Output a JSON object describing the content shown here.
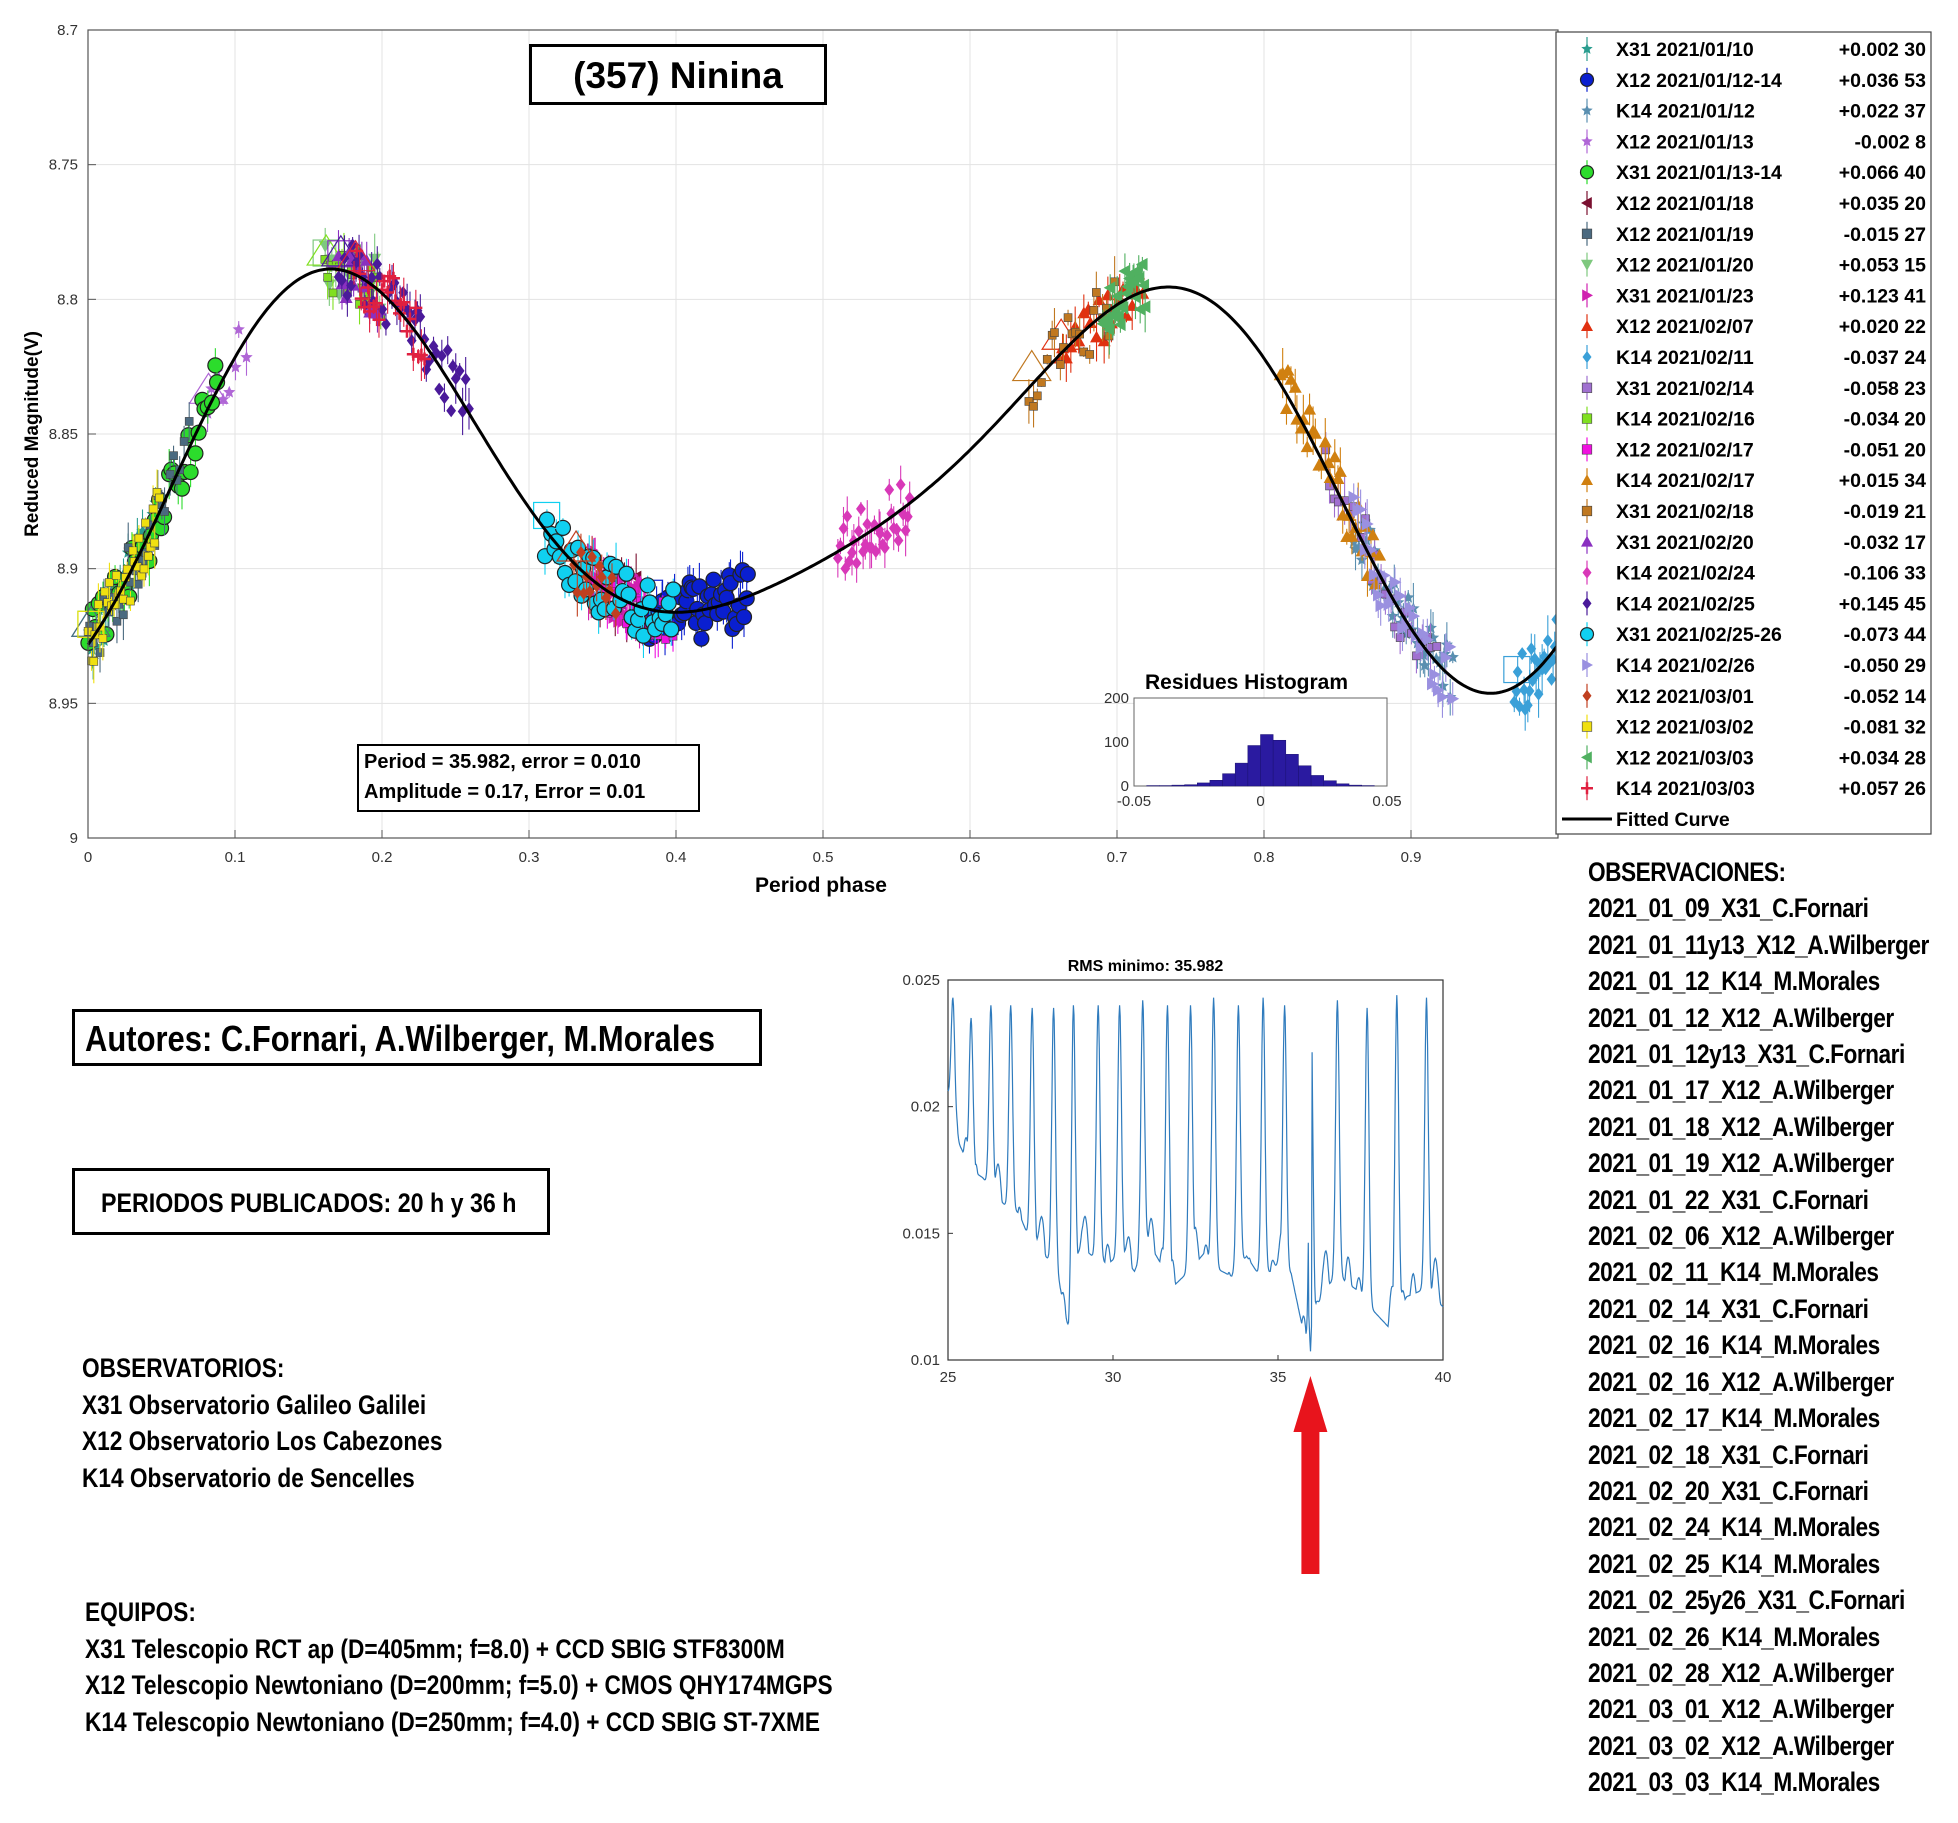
{
  "main_title": "(357) Ninina",
  "period_box": {
    "line1": "Period =  35.982, error = 0.010",
    "line2": "Amplitude = 0.17, Error = 0.01"
  },
  "authors": "Autores: C.Fornari, A.Wilberger, M.Morales",
  "published": "PERIODOS PUBLICADOS: 20 h y 36 h",
  "observatorios": {
    "title": "OBSERVATORIOS:",
    "lines": [
      "X31 Observatorio Galileo Galilei",
      "X12 Observatorio Los Cabezones",
      "K14 Observatorio de Sencelles"
    ]
  },
  "equipos": {
    "title": "EQUIPOS:",
    "lines": [
      "X31 Telescopio RCT ap (D=405mm; f=8.0) + CCD SBIG STF8300M",
      "X12 Telescopio Newtoniano (D=200mm; f=5.0) + CMOS QHY174MGPS",
      "K14 Telescopio Newtoniano (D=250mm; f=4.0) + CCD SBIG ST-7XME"
    ]
  },
  "observaciones": {
    "title": "OBSERVACIONES:",
    "lines": [
      "2021_01_09_X31_C.Fornari",
      "2021_01_11y13_X12_A.Wilberger",
      "2021_01_12_K14_M.Morales",
      "2021_01_12_X12_A.Wilberger",
      "2021_01_12y13_X31_C.Fornari",
      "2021_01_17_X12_A.Wilberger",
      "2021_01_18_X12_A.Wilberger",
      "2021_01_19_X12_A.Wilberger",
      "2021_01_22_X31_C.Fornari",
      "2021_02_06_X12_A.Wilberger",
      "2021_02_11_K14_M.Morales",
      "2021_02_14_X31_C.Fornari",
      "2021_02_16_K14_M.Morales",
      "2021_02_16_X12_A.Wilberger",
      "2021_02_17_K14_M.Morales",
      "2021_02_18_X31_C.Fornari",
      "2021_02_20_X31_C.Fornari",
      "2021_02_24_K14_M.Morales",
      "2021_02_25_K14_M.Morales",
      "2021_02_25y26_X31_C.Fornari",
      "2021_02_26_K14_M.Morales",
      "2021_02_28_X12_A.Wilberger",
      "2021_03_01_X12_A.Wilberger",
      "2021_03_02_X12_A.Wilberger",
      "2021_03_03_K14_M.Morales"
    ]
  },
  "chart_data": [
    {
      "type": "scatter",
      "title": "(357) Ninina",
      "xlabel": "Period phase",
      "ylabel": "Reduced Magnitude(V)",
      "xlim": [
        0,
        1
      ],
      "ylim": [
        9,
        8.7
      ],
      "y_reversed": true,
      "grid": true,
      "x_ticks": [
        0,
        0.1,
        0.2,
        0.3,
        0.4,
        0.5,
        0.6,
        0.7,
        0.8,
        0.9
      ],
      "x_tick_labels": [
        "0",
        "0.1",
        "0.2",
        "0.3",
        "0.4",
        "0.5",
        "0.6",
        "0.7",
        "0.8",
        "0.9"
      ],
      "y_ticks": [
        8.7,
        8.75,
        8.8,
        8.85,
        8.9,
        8.95,
        9
      ],
      "y_tick_labels": [
        "8.7",
        "8.75",
        "8.8",
        "8.85",
        "8.9",
        "8.95",
        "9"
      ],
      "legend_position": "right",
      "fitted_curve": {
        "name": "Fitted Curve",
        "color": "#000000",
        "mean": 8.864,
        "harmonics": [
          {
            "k": 1,
            "a": -0.002,
            "b": 0.005
          },
          {
            "k": 2,
            "a": 0.0485,
            "b": -0.0423
          },
          {
            "k": 3,
            "a": 0.0177,
            "b": -0.0137
          }
        ]
      },
      "series": [
        {
          "name": "X31 2021/01/10",
          "offset": "+0.002 30",
          "marker": "star",
          "color": "#2a9d8f",
          "phase": [
            0.0,
            0.05
          ]
        },
        {
          "name": "X12 2021/01/12-14",
          "offset": "+0.036 53",
          "marker": "circle",
          "color": "#0a1fd0",
          "phase": [
            0.38,
            0.45
          ]
        },
        {
          "name": "K14 2021/01/12",
          "offset": "+0.022 37",
          "marker": "star",
          "color": "#5a8fb0",
          "phase": [
            0.86,
            0.93
          ]
        },
        {
          "name": "X12 2021/01/13",
          "offset": "-0.002  8",
          "marker": "star",
          "color": "#b066d6",
          "phase": [
            0.08,
            0.11
          ]
        },
        {
          "name": "X31 2021/01/13-14",
          "offset": "+0.066 40",
          "marker": "circle",
          "color": "#2cdc2c",
          "phase": [
            0.0,
            0.09
          ]
        },
        {
          "name": "X12 2021/01/18",
          "offset": "+0.035 20",
          "marker": "triangle-left",
          "color": "#7a1030",
          "phase": [
            0.34,
            0.38
          ]
        },
        {
          "name": "X12 2021/01/19",
          "offset": "-0.015 27",
          "marker": "square",
          "color": "#4b6a80",
          "phase": [
            0.0,
            0.07
          ]
        },
        {
          "name": "X12 2021/01/20",
          "offset": "+0.053 15",
          "marker": "triangle-down",
          "color": "#7ec87e",
          "phase": [
            0.16,
            0.2
          ]
        },
        {
          "name": "X31 2021/01/23",
          "offset": "+0.123 41",
          "marker": "triangle-right",
          "color": "#d020b0",
          "phase": [
            0.34,
            0.38
          ]
        },
        {
          "name": "X12 2021/02/07",
          "offset": "+0.020 22",
          "marker": "triangle",
          "color": "#e03010",
          "phase": [
            0.66,
            0.72
          ]
        },
        {
          "name": "K14 2021/02/11",
          "offset": "-0.037 24",
          "marker": "diamond",
          "color": "#3aa0d8",
          "phase": [
            0.97,
            1.0
          ]
        },
        {
          "name": "X31 2021/02/14",
          "offset": "-0.058 23",
          "marker": "square",
          "color": "#a070d0",
          "phase": [
            0.84,
            0.92
          ]
        },
        {
          "name": "K14 2021/02/16",
          "offset": "-0.034 20",
          "marker": "square",
          "color": "#80e020",
          "phase": [
            0.16,
            0.2
          ]
        },
        {
          "name": "X12 2021/02/17",
          "offset": "-0.051 20",
          "marker": "square",
          "color": "#f010e0",
          "phase": [
            0.35,
            0.4
          ]
        },
        {
          "name": "K14 2021/02/17",
          "offset": "+0.015 34",
          "marker": "triangle",
          "color": "#d08010",
          "phase": [
            0.81,
            0.88
          ]
        },
        {
          "name": "X31 2021/02/18",
          "offset": "-0.019 21",
          "marker": "square",
          "color": "#c07820",
          "phase": [
            0.64,
            0.7
          ]
        },
        {
          "name": "X31 2021/02/20",
          "offset": "-0.032 17",
          "marker": "triangle",
          "color": "#8a30c0",
          "phase": [
            0.17,
            0.2
          ]
        },
        {
          "name": "K14 2021/02/24",
          "offset": "-0.106 33",
          "marker": "diamond",
          "color": "#d838b8",
          "phase": [
            0.51,
            0.56
          ]
        },
        {
          "name": "K14 2021/02/25",
          "offset": "+0.145 45",
          "marker": "diamond",
          "color": "#4a1a9a",
          "phase": [
            0.17,
            0.26
          ]
        },
        {
          "name": "X31 2021/02/25-26",
          "offset": "-0.073 44",
          "marker": "circle",
          "color": "#10d0f0",
          "phase": [
            0.31,
            0.4
          ]
        },
        {
          "name": "K14 2021/02/26",
          "offset": "-0.050 29",
          "marker": "triangle-right",
          "color": "#9a90e0",
          "phase": [
            0.86,
            0.93
          ]
        },
        {
          "name": "X12 2021/03/01",
          "offset": "-0.052 14",
          "marker": "diamond",
          "color": "#c04020",
          "phase": [
            0.33,
            0.36
          ]
        },
        {
          "name": "X12 2021/03/02",
          "offset": "-0.081 32",
          "marker": "square",
          "color": "#f0e010",
          "phase": [
            0.0,
            0.05
          ]
        },
        {
          "name": "X12 2021/03/03",
          "offset": "+0.034 28",
          "marker": "triangle-left",
          "color": "#50b060",
          "phase": [
            0.69,
            0.72
          ]
        },
        {
          "name": "K14 2021/03/03",
          "offset": "+0.057 26",
          "marker": "plus",
          "color": "#e02040",
          "phase": [
            0.18,
            0.23
          ]
        }
      ]
    },
    {
      "type": "bar",
      "title": "Residues Histogram",
      "xlim": [
        -0.05,
        0.05
      ],
      "ylim": [
        0,
        200
      ],
      "x_tick_labels": [
        "-0.05",
        "0",
        "0.05"
      ],
      "y_tick_labels": [
        "0",
        "100",
        "200"
      ],
      "color": "#2a1aa0",
      "bin_edges": [
        -0.05,
        -0.045,
        -0.04,
        -0.035,
        -0.03,
        -0.025,
        -0.02,
        -0.015,
        -0.01,
        -0.005,
        0,
        0.005,
        0.01,
        0.015,
        0.02,
        0.025,
        0.03,
        0.035,
        0.04,
        0.045,
        0.05
      ],
      "values": [
        0,
        1,
        1,
        2,
        3,
        7,
        13,
        28,
        52,
        92,
        117,
        104,
        72,
        46,
        24,
        12,
        5,
        2,
        1,
        0
      ]
    },
    {
      "type": "line",
      "title": "RMS minimo: 35.982",
      "xlim": [
        25,
        40
      ],
      "ylim": [
        0.01,
        0.025
      ],
      "x_tick_labels": [
        "25",
        "30",
        "35",
        "40"
      ],
      "y_tick_labels": [
        "0.01",
        "0.015",
        "0.02",
        "0.025"
      ],
      "color": "#2f7bbd",
      "minimum_x": 35.982,
      "minimum_y": 0.0103,
      "x": [
        25.0,
        25.35,
        25.7,
        26.05,
        26.45,
        26.8,
        27.15,
        27.55,
        27.9,
        28.3,
        28.65,
        29.05,
        29.45,
        29.85,
        30.25,
        30.65,
        31.05,
        31.45,
        31.9,
        32.3,
        32.75,
        33.15,
        33.6,
        34.05,
        34.5,
        34.95,
        35.4,
        35.9,
        36.35,
        36.85,
        37.35,
        37.85,
        38.35,
        38.9,
        39.45,
        40.0
      ],
      "y": [
        0.0205,
        0.0185,
        0.0175,
        0.0172,
        0.0165,
        0.016,
        0.0158,
        0.0145,
        0.0142,
        0.0135,
        0.0112,
        0.0145,
        0.014,
        0.0138,
        0.0142,
        0.0135,
        0.0147,
        0.0138,
        0.013,
        0.0135,
        0.0142,
        0.0136,
        0.0133,
        0.0141,
        0.0132,
        0.0137,
        0.0134,
        0.0103,
        0.0128,
        0.0133,
        0.0128,
        0.012,
        0.0113,
        0.0125,
        0.0128,
        0.0121
      ],
      "peaks": [
        25.15,
        25.7,
        26.3,
        26.9,
        27.55,
        28.2,
        28.8,
        29.55,
        30.2,
        30.9,
        31.65,
        32.35,
        33.05,
        33.8,
        34.55,
        35.2,
        36.0,
        36.8,
        37.7,
        38.6,
        39.5
      ],
      "peak_heights": [
        0.0243,
        0.0235,
        0.024,
        0.024,
        0.0239,
        0.0239,
        0.024,
        0.024,
        0.024,
        0.0242,
        0.024,
        0.024,
        0.0243,
        0.024,
        0.0243,
        0.024,
        0.0242,
        0.0242,
        0.0239,
        0.0244,
        0.0243
      ]
    }
  ],
  "arrow_color": "#e8141c"
}
